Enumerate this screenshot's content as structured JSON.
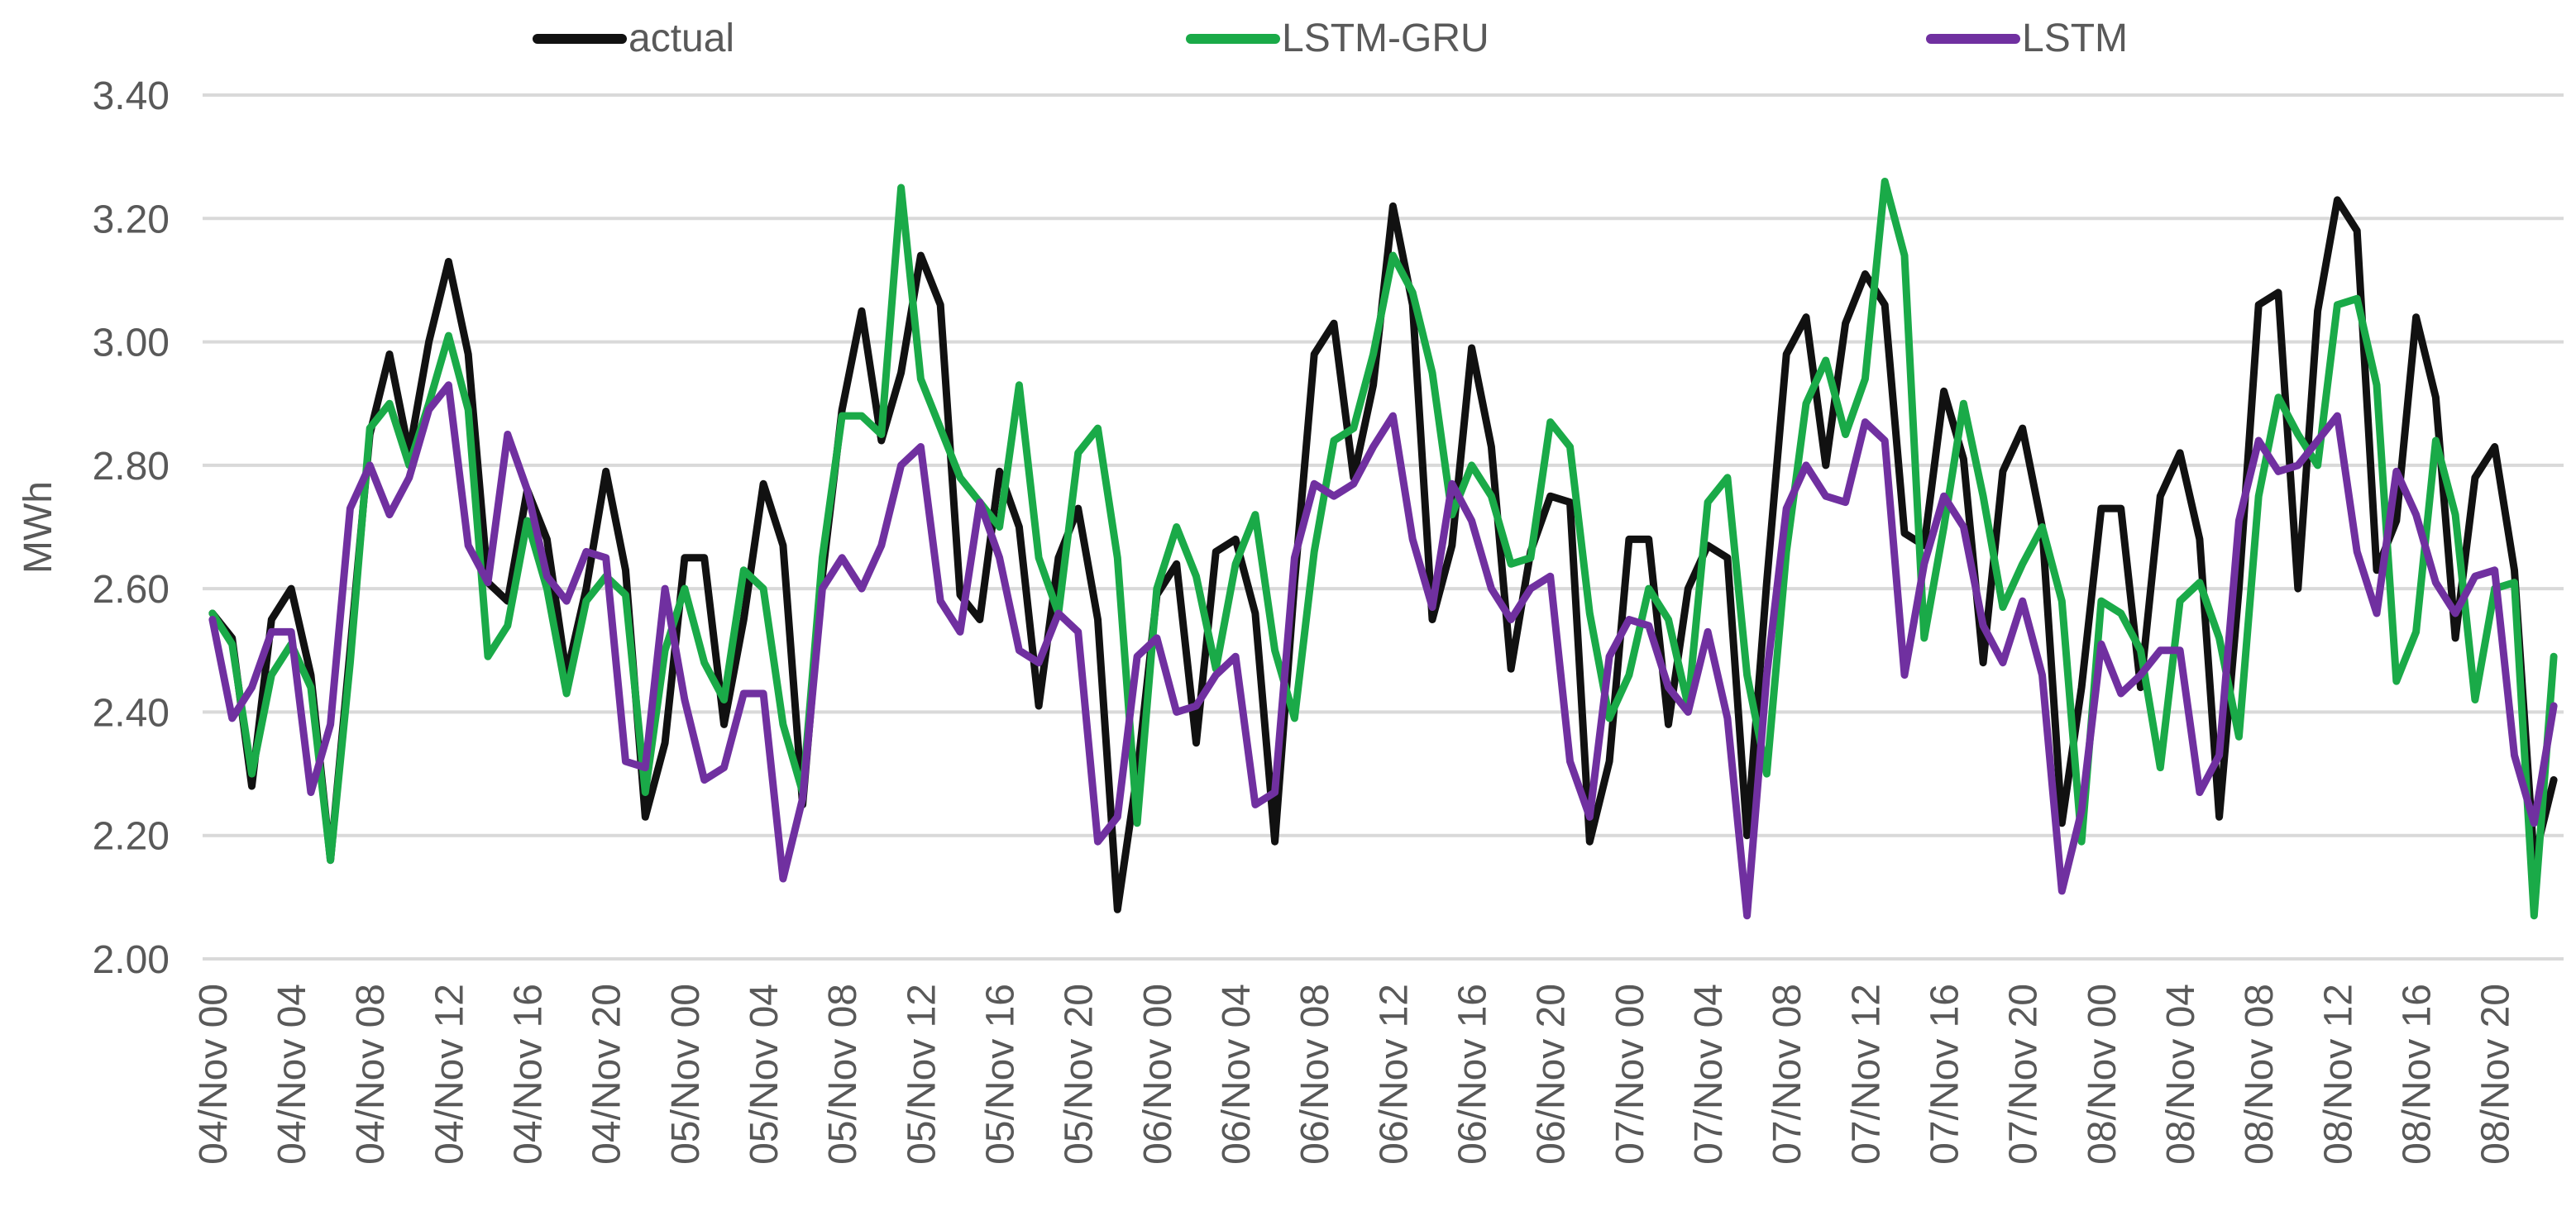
{
  "chart_data": {
    "type": "line",
    "title": "",
    "xlabel": "",
    "ylabel": "MWh",
    "ylim": [
      2.0,
      3.4
    ],
    "yticks": [
      "2.00",
      "2.20",
      "2.40",
      "2.60",
      "2.80",
      "3.00",
      "3.20",
      "3.40"
    ],
    "grid": true,
    "legend_position": "top",
    "x_tick_labels": [
      "04/Nov 00",
      "04/Nov 04",
      "04/Nov 08",
      "04/Nov 12",
      "04/Nov 16",
      "04/Nov 20",
      "05/Nov 00",
      "05/Nov 04",
      "05/Nov 08",
      "05/Nov 12",
      "05/Nov 16",
      "05/Nov 20",
      "06/Nov 00",
      "06/Nov 04",
      "06/Nov 08",
      "06/Nov 12",
      "06/Nov 16",
      "06/Nov 20",
      "07/Nov 00",
      "07/Nov 04",
      "07/Nov 08",
      "07/Nov 12",
      "07/Nov 16",
      "07/Nov 20",
      "08/Nov 00",
      "08/Nov 04",
      "08/Nov 08",
      "08/Nov 12",
      "08/Nov 16",
      "08/Nov 20"
    ],
    "x_tick_every": 4,
    "n_points": 120,
    "series": [
      {
        "name": "actual",
        "color": "#111111",
        "values": [
          2.56,
          2.52,
          2.28,
          2.55,
          2.6,
          2.46,
          2.16,
          2.5,
          2.85,
          2.98,
          2.82,
          3.0,
          3.13,
          2.98,
          2.61,
          2.58,
          2.76,
          2.68,
          2.46,
          2.6,
          2.79,
          2.63,
          2.23,
          2.35,
          2.65,
          2.65,
          2.38,
          2.55,
          2.77,
          2.67,
          2.25,
          2.62,
          2.89,
          3.05,
          2.84,
          2.95,
          3.14,
          3.06,
          2.59,
          2.55,
          2.79,
          2.7,
          2.41,
          2.65,
          2.73,
          2.55,
          2.08,
          2.3,
          2.59,
          2.64,
          2.35,
          2.66,
          2.68,
          2.56,
          2.19,
          2.61,
          2.98,
          3.03,
          2.78,
          2.93,
          3.22,
          3.06,
          2.55,
          2.67,
          2.99,
          2.83,
          2.47,
          2.66,
          2.75,
          2.74,
          2.19,
          2.32,
          2.68,
          2.68,
          2.38,
          2.6,
          2.67,
          2.65,
          2.2,
          2.61,
          2.98,
          3.04,
          2.8,
          3.03,
          3.11,
          3.06,
          2.69,
          2.67,
          2.92,
          2.81,
          2.48,
          2.79,
          2.86,
          2.7,
          2.22,
          2.44,
          2.73,
          2.73,
          2.44,
          2.75,
          2.82,
          2.68,
          2.23,
          2.6,
          3.06,
          3.08,
          2.6,
          3.05,
          3.23,
          3.18,
          2.63,
          2.71,
          3.04,
          2.91,
          2.52,
          2.78,
          2.83,
          2.63,
          2.16,
          2.29
        ]
      },
      {
        "name": "LSTM-GRU",
        "color": "#1aaa48",
        "values": [
          2.56,
          2.51,
          2.3,
          2.46,
          2.51,
          2.44,
          2.16,
          2.48,
          2.86,
          2.9,
          2.8,
          2.9,
          3.01,
          2.89,
          2.49,
          2.54,
          2.71,
          2.6,
          2.43,
          2.58,
          2.62,
          2.59,
          2.27,
          2.5,
          2.6,
          2.48,
          2.42,
          2.63,
          2.6,
          2.38,
          2.27,
          2.65,
          2.88,
          2.88,
          2.85,
          3.25,
          2.94,
          2.86,
          2.78,
          2.74,
          2.7,
          2.93,
          2.65,
          2.56,
          2.82,
          2.86,
          2.65,
          2.22,
          2.6,
          2.7,
          2.62,
          2.47,
          2.64,
          2.72,
          2.5,
          2.39,
          2.66,
          2.84,
          2.86,
          2.98,
          3.14,
          3.08,
          2.95,
          2.72,
          2.8,
          2.75,
          2.64,
          2.65,
          2.87,
          2.83,
          2.56,
          2.39,
          2.46,
          2.6,
          2.55,
          2.41,
          2.74,
          2.78,
          2.46,
          2.3,
          2.66,
          2.9,
          2.97,
          2.85,
          2.94,
          3.26,
          3.14,
          2.52,
          2.7,
          2.9,
          2.75,
          2.57,
          2.64,
          2.7,
          2.58,
          2.19,
          2.58,
          2.56,
          2.5,
          2.31,
          2.58,
          2.61,
          2.52,
          2.36,
          2.75,
          2.91,
          2.85,
          2.8,
          3.06,
          3.07,
          2.93,
          2.45,
          2.53,
          2.84,
          2.72,
          2.42,
          2.6,
          2.61,
          2.07,
          2.49
        ]
      },
      {
        "name": "LSTM",
        "color": "#7030a0",
        "values": [
          2.55,
          2.39,
          2.44,
          2.53,
          2.53,
          2.27,
          2.38,
          2.73,
          2.8,
          2.72,
          2.78,
          2.89,
          2.93,
          2.67,
          2.61,
          2.85,
          2.76,
          2.62,
          2.58,
          2.66,
          2.65,
          2.32,
          2.31,
          2.6,
          2.42,
          2.29,
          2.31,
          2.43,
          2.43,
          2.13,
          2.26,
          2.6,
          2.65,
          2.6,
          2.67,
          2.8,
          2.83,
          2.58,
          2.53,
          2.74,
          2.65,
          2.5,
          2.48,
          2.56,
          2.53,
          2.19,
          2.23,
          2.49,
          2.52,
          2.4,
          2.41,
          2.46,
          2.49,
          2.25,
          2.27,
          2.65,
          2.77,
          2.75,
          2.77,
          2.83,
          2.88,
          2.68,
          2.57,
          2.77,
          2.71,
          2.6,
          2.55,
          2.6,
          2.62,
          2.32,
          2.23,
          2.49,
          2.55,
          2.54,
          2.44,
          2.4,
          2.53,
          2.39,
          2.07,
          2.46,
          2.73,
          2.8,
          2.75,
          2.74,
          2.87,
          2.84,
          2.46,
          2.64,
          2.75,
          2.7,
          2.54,
          2.48,
          2.58,
          2.46,
          2.11,
          2.24,
          2.51,
          2.43,
          2.46,
          2.5,
          2.5,
          2.27,
          2.33,
          2.71,
          2.84,
          2.79,
          2.8,
          2.84,
          2.88,
          2.66,
          2.56,
          2.79,
          2.72,
          2.61,
          2.56,
          2.62,
          2.63,
          2.33,
          2.22,
          2.41
        ]
      }
    ]
  }
}
